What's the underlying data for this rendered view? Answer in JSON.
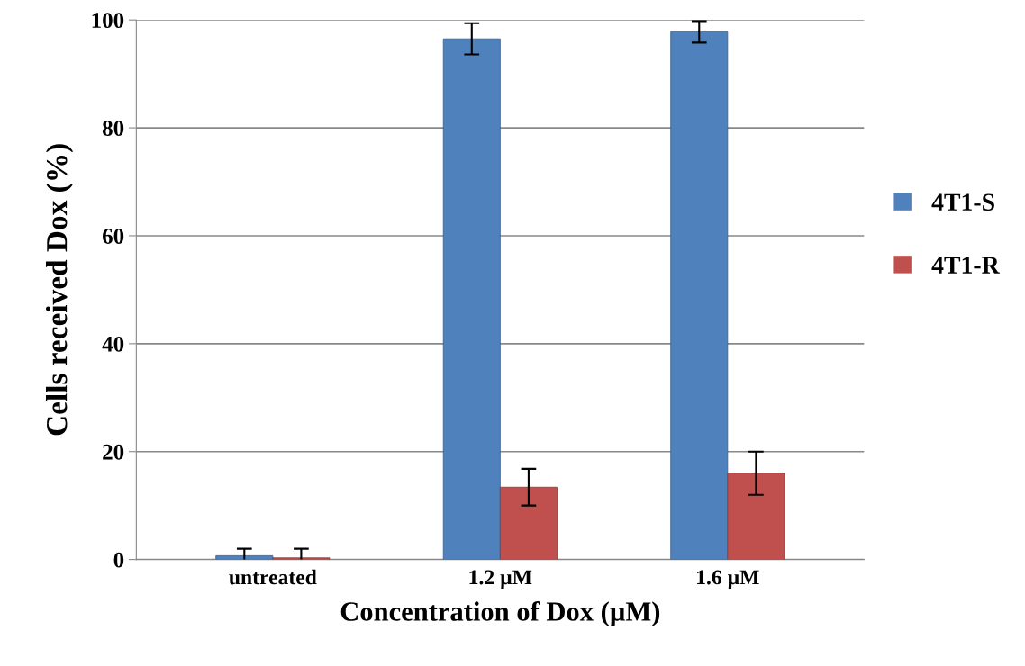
{
  "chart_data": {
    "type": "bar",
    "xlabel": "Concentration of Dox (µM)",
    "ylabel": "Cells received Dox (%)",
    "categories": [
      "untreated",
      "1.2 µM",
      "1.6 µM"
    ],
    "series": [
      {
        "name": "4T1-S",
        "color": "#4f81bd",
        "values": [
          0.7,
          96.5,
          97.8
        ],
        "errors": [
          1.3,
          2.9,
          2.0
        ]
      },
      {
        "name": "4T1-R",
        "color": "#c0504d",
        "values": [
          0.3,
          13.4,
          16.0
        ],
        "errors": [
          1.7,
          3.4,
          4.0
        ]
      }
    ],
    "ylim": [
      0,
      100
    ],
    "yticks": [
      0,
      20,
      40,
      60,
      80,
      100
    ],
    "grid": "y",
    "legend": "right"
  }
}
